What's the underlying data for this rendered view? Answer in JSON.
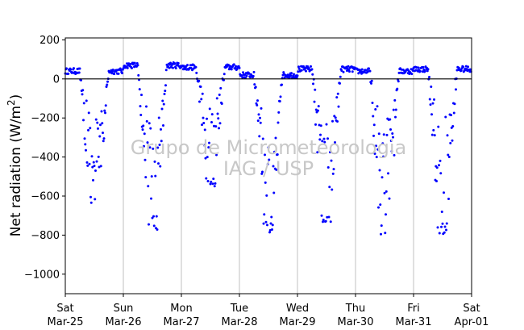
{
  "chart_data": {
    "type": "scatter",
    "ylabel": "Net radiation (W/m²)",
    "ylabel_main": "Net radiation (W/m",
    "ylabel_sup": "2",
    "ylabel_end": ")",
    "ylim": [
      -1100,
      210
    ],
    "yticks": [
      200,
      0,
      -200,
      -400,
      -600,
      -800,
      -1000
    ],
    "ytick_labels": [
      "200",
      "0",
      "−200",
      "−400",
      "−600",
      "−800",
      "−1000"
    ],
    "xlim": [
      "2017-03-25",
      "2017-04-01"
    ],
    "xticks": [
      {
        "day": "Sat",
        "date": "Mar-25"
      },
      {
        "day": "Sun",
        "date": "Mar-26"
      },
      {
        "day": "Mon",
        "date": "Mar-27"
      },
      {
        "day": "Tue",
        "date": "Mar-28"
      },
      {
        "day": "Wed",
        "date": "Mar-29"
      },
      {
        "day": "Thu",
        "date": "Mar-30"
      },
      {
        "day": "Fri",
        "date": "Mar-31"
      },
      {
        "day": "Sat",
        "date": "Apr-01"
      }
    ],
    "vertical_grid": true,
    "zero_line": true,
    "marker_color": "#0000ff",
    "watermark_lines": [
      "Grupo de Micrometeorologia",
      "IAG / USP"
    ],
    "series": [
      {
        "note": "daily peak (most negative) net radiation, approx, by day",
        "daily_minimum": [
          {
            "day": "Mar-25",
            "min": -660
          },
          {
            "day": "Mar-26",
            "min": -780
          },
          {
            "day": "Mar-27",
            "min": -550
          },
          {
            "day": "Mar-28",
            "min": -800
          },
          {
            "day": "Mar-29",
            "min": -735
          },
          {
            "day": "Mar-30",
            "min": -850
          },
          {
            "day": "Mar-31",
            "min": -805
          }
        ],
        "night_level": [
          {
            "day": "Mar-25",
            "level": 40
          },
          {
            "day": "Mar-26",
            "level": 70
          },
          {
            "day": "Mar-27",
            "level": 60
          },
          {
            "day": "Mar-28",
            "level": 20
          },
          {
            "day": "Mar-29",
            "level": 50
          },
          {
            "day": "Mar-30",
            "level": 40
          },
          {
            "day": "Mar-31",
            "level": 50
          }
        ]
      }
    ]
  }
}
